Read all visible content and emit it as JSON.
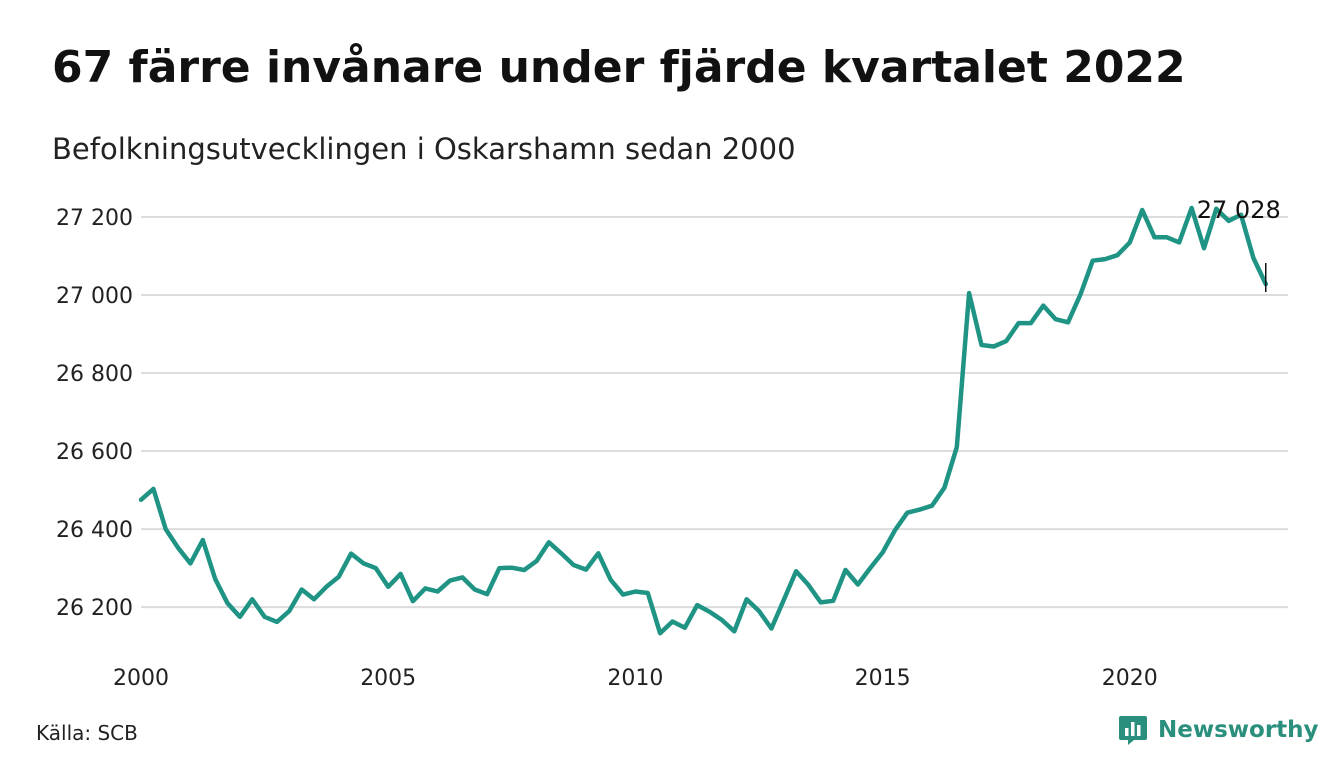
{
  "header": {
    "title": "67 färre invånare under fjärde kvartalet 2022",
    "subtitle": "Befolkningsutvecklingen i Oskarshamn sedan 2000"
  },
  "footer": {
    "source": "Källa: SCB",
    "brand": "Newsworthy"
  },
  "colors": {
    "line": "#1f9484",
    "grid": "#dcdcdc",
    "brand": "#2a8f7c"
  },
  "icons": {
    "brand_logo": "bar-chart-speech-bubble-icon"
  },
  "chart_data": {
    "type": "line",
    "title": "67 färre invånare under fjärde kvartalet 2022",
    "subtitle": "Befolkningsutvecklingen i Oskarshamn sedan 2000",
    "xlabel": "",
    "ylabel": "",
    "xlim": [
      2000,
      2023.2
    ],
    "ylim": [
      26090,
      27300
    ],
    "x_ticks": [
      2000,
      2005,
      2010,
      2015,
      2020
    ],
    "x_tick_labels": [
      "2000",
      "2005",
      "2010",
      "2015",
      "2020"
    ],
    "y_ticks": [
      26200,
      26400,
      26600,
      26800,
      27000,
      27200
    ],
    "y_tick_labels": [
      "26 200",
      "26 400",
      "26 600",
      "26 800",
      "27 000",
      "27 200"
    ],
    "grid": "horizontal",
    "annotation": {
      "x": 2022.75,
      "y": 27028,
      "label": "27 028"
    },
    "series": [
      {
        "x": [
          2000.0,
          2000.25,
          2000.5,
          2000.75,
          2001.0,
          2001.25,
          2001.5,
          2001.75,
          2002.0,
          2002.25,
          2002.5,
          2002.75,
          2003.0,
          2003.25,
          2003.5,
          2003.75,
          2004.0,
          2004.25,
          2004.5,
          2004.75,
          2005.0,
          2005.25,
          2005.5,
          2005.75,
          2006.0,
          2006.25,
          2006.5,
          2006.75,
          2007.0,
          2007.25,
          2007.5,
          2007.75,
          2008.0,
          2008.25,
          2008.5,
          2008.75,
          2009.0,
          2009.25,
          2009.5,
          2009.75,
          2010.0,
          2010.25,
          2010.5,
          2010.75,
          2011.0,
          2011.25,
          2011.5,
          2011.75,
          2012.0,
          2012.25,
          2012.5,
          2012.75,
          2013.0,
          2013.25,
          2013.5,
          2013.75,
          2014.0,
          2014.25,
          2014.5,
          2014.75,
          2015.0,
          2015.25,
          2015.5,
          2015.75,
          2016.0,
          2016.25,
          2016.5,
          2016.75,
          2017.0,
          2017.25,
          2017.5,
          2017.75,
          2018.0,
          2018.25,
          2018.5,
          2018.75,
          2019.0,
          2019.25,
          2019.5,
          2019.75,
          2020.0,
          2020.25,
          2020.5,
          2020.75,
          2021.0,
          2021.25,
          2021.5,
          2021.75,
          2022.0,
          2022.25,
          2022.5,
          2022.75
        ],
        "y": [
          26475,
          26503,
          26400,
          26352,
          26312,
          26372,
          26272,
          26210,
          26175,
          26220,
          26175,
          26162,
          26190,
          26245,
          26220,
          26252,
          26278,
          26337,
          26312,
          26300,
          26252,
          26285,
          26215,
          26248,
          26240,
          26268,
          26276,
          26245,
          26233,
          26300,
          26301,
          26295,
          26318,
          26366,
          26338,
          26308,
          26296,
          26338,
          26270,
          26232,
          26240,
          26236,
          26133,
          26163,
          26147,
          26205,
          26188,
          26167,
          26138,
          26220,
          26190,
          26145,
          26218,
          26292,
          26257,
          26212,
          26216,
          26295,
          26258,
          26300,
          26340,
          26397,
          26442,
          26450,
          26460,
          26506,
          26610,
          27005,
          26872,
          26868,
          26882,
          26928,
          26928,
          26973,
          26938,
          26930,
          27001,
          27088,
          27092,
          27102,
          27135,
          27218,
          27148,
          27148,
          27135,
          27223,
          27120,
          27221,
          27190,
          27206,
          27095,
          27028
        ]
      }
    ]
  }
}
